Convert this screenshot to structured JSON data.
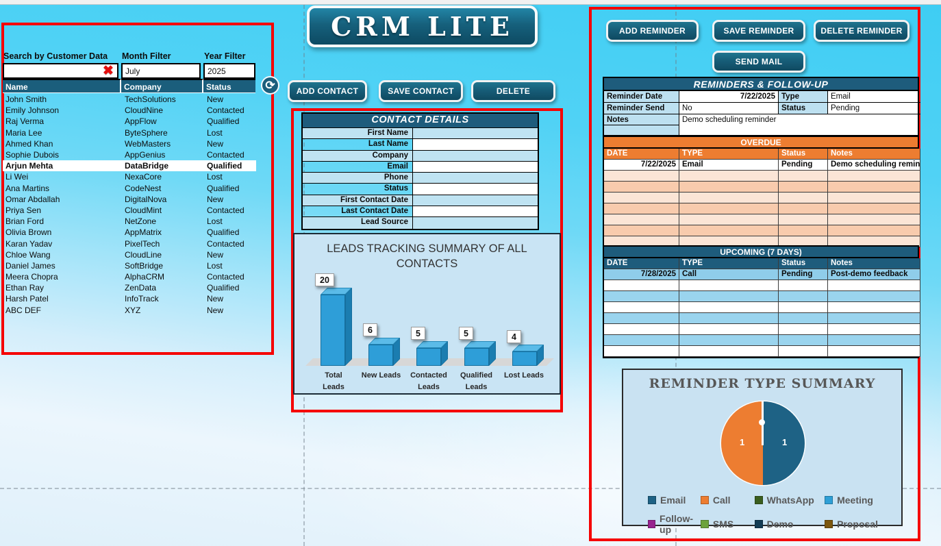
{
  "app": {
    "title": "CRM LITE"
  },
  "icons": {
    "clear": "✖",
    "refresh": "⟳"
  },
  "left_panel": {
    "search_label": "Search by Customer Data",
    "search_value": "",
    "month_filter": {
      "label": "Month Filter",
      "value": "July"
    },
    "year_filter": {
      "label": "Year Filter",
      "value": "2025"
    },
    "table": {
      "headers": [
        "Name",
        "Company",
        "Status"
      ],
      "selected_index": 6,
      "rows": [
        [
          "John Smith",
          "TechSolutions",
          "New"
        ],
        [
          "Emily Johnson",
          "CloudNine",
          "Contacted"
        ],
        [
          "Raj Verma",
          "AppFlow",
          "Qualified"
        ],
        [
          "Maria Lee",
          "ByteSphere",
          "Lost"
        ],
        [
          "Ahmed Khan",
          "WebMasters",
          "New"
        ],
        [
          "Sophie Dubois",
          "AppGenius",
          "Contacted"
        ],
        [
          "Arjun Mehta",
          "DataBridge",
          "Qualified"
        ],
        [
          "Li Wei",
          "NexaCore",
          "Lost"
        ],
        [
          "Ana Martins",
          "CodeNest",
          "Qualified"
        ],
        [
          "Omar Abdallah",
          "DigitalNova",
          "New"
        ],
        [
          "Priya Sen",
          "CloudMint",
          "Contacted"
        ],
        [
          "Brian Ford",
          "NetZone",
          "Lost"
        ],
        [
          "Olivia Brown",
          "AppMatrix",
          "Qualified"
        ],
        [
          "Karan Yadav",
          "PixelTech",
          "Contacted"
        ],
        [
          "Chloe Wang",
          "CloudLine",
          "New"
        ],
        [
          "Daniel James",
          "SoftBridge",
          "Lost"
        ],
        [
          "Meera Chopra",
          "AlphaCRM",
          "Contacted"
        ],
        [
          "Ethan Ray",
          "ZenData",
          "Qualified"
        ],
        [
          "Harsh Patel",
          "InfoTrack",
          "New"
        ],
        [
          "ABC DEF",
          "XYZ",
          "New"
        ]
      ]
    }
  },
  "contact_toolbar": {
    "add": "ADD CONTACT",
    "save": "SAVE CONTACT",
    "delete": "DELETE"
  },
  "contact_details": {
    "title": "CONTACT DETAILS",
    "fields": [
      "First Name",
      "Last Name",
      "Company",
      "Email",
      "Phone",
      "Status",
      "First Contact Date",
      "Last Contact Date",
      "Lead Source"
    ],
    "values": [
      "",
      "",
      "",
      "",
      "",
      "",
      "",
      "",
      ""
    ]
  },
  "reminder_toolbar": {
    "add": "ADD REMINDER",
    "save": "SAVE REMINDER",
    "delete": "DELETE REMINDER",
    "send": "SEND MAIL"
  },
  "reminders": {
    "title": "REMINDERS & FOLLOW-UP",
    "form": {
      "reminder_date_label": "Reminder Date",
      "reminder_date": "7/22/2025",
      "type_label": "Type",
      "type": "Email",
      "reminder_send_label": "Reminder Send",
      "reminder_send": "No",
      "status_label": "Status",
      "status": "Pending",
      "notes_label": "Notes",
      "notes": "Demo scheduling reminder"
    },
    "overdue": {
      "title": "OVERDUE",
      "headers": [
        "DATE",
        "TYPE",
        "Status",
        "Notes"
      ],
      "rows": [
        [
          "7/22/2025",
          "Email",
          "Pending",
          "Demo scheduling reminder"
        ]
      ],
      "empty_rows": 7
    },
    "upcoming": {
      "title": "UPCOMING (7 DAYS)",
      "headers": [
        "DATE",
        "TYPE",
        "Status",
        "Notes"
      ],
      "rows": [
        [
          "7/28/2025",
          "Call",
          "Pending",
          "Post-demo feedback"
        ]
      ],
      "empty_rows": 7
    }
  },
  "chart_data": [
    {
      "type": "bar",
      "title": "LEADS TRACKING SUMMARY OF ALL CONTACTS",
      "categories": [
        "Total Leads",
        "New Leads",
        "Contacted Leads",
        "Qualified Leads",
        "Lost Leads"
      ],
      "category_lines": [
        [
          "Total",
          "Leads"
        ],
        [
          "New Leads"
        ],
        [
          "Contacted",
          "Leads"
        ],
        [
          "Qualified",
          "Leads"
        ],
        [
          "Lost Leads"
        ]
      ],
      "values": [
        20,
        6,
        5,
        5,
        4
      ],
      "ylim": [
        0,
        20
      ],
      "style": "3d-bar",
      "bar_color": "#2e9ed8",
      "data_labels": true
    },
    {
      "type": "pie",
      "title": "REMINDER TYPE SUMMARY",
      "labels": [
        "Email",
        "Call",
        "WhatsApp",
        "Meeting",
        "Follow-up",
        "SMS",
        "Demo",
        "Proposal"
      ],
      "values": [
        1,
        1,
        0,
        0,
        0,
        0,
        0,
        0
      ],
      "colors": [
        "#1e6285",
        "#ed7d31",
        "#3a5e1f",
        "#2e9fd6",
        "#98248e",
        "#6ca33c",
        "#143c54",
        "#7c570f"
      ],
      "legend_position": "bottom",
      "data_labels": [
        1,
        1
      ]
    }
  ],
  "colors": {
    "panel_border": "#f50000",
    "header_blue": "#1e5c7c",
    "orange": "#ed7d31",
    "label_blue": "#bde0f0",
    "overdue_row_light": "#fbe5d6",
    "overdue_row_dark": "#f8cbad",
    "upcoming_row_blue": "#9ad4ee",
    "upcoming_data_row": "#8fcdea",
    "chart_bg": "#c9e4f4"
  }
}
